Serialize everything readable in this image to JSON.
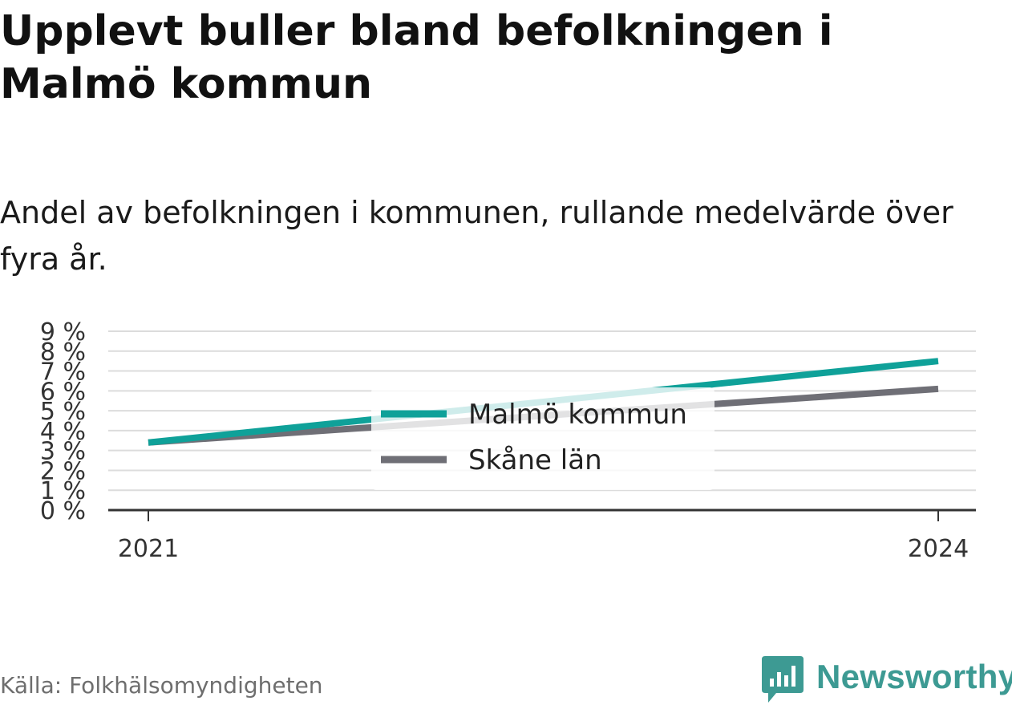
{
  "header": {
    "title": "Upplevt buller bland befolkningen i Malmö kommun",
    "subtitle": "Andel av befolkningen i kommunen, rullande medelvärde över fyra år."
  },
  "footer": {
    "source": "Källa: Folkhälsomyndigheten",
    "brand": "Newsworthy"
  },
  "colors": {
    "malmo": "#0fa199",
    "skane": "#6f6f76",
    "grid": "#dcdcdc",
    "axis": "#333333",
    "brand": "#3d9a93"
  },
  "chart_data": {
    "type": "line",
    "x": [
      2021,
      2024
    ],
    "x_ticks": [
      "2021",
      "2024"
    ],
    "y_ticks": [
      "0 %",
      "1 %",
      "2 %",
      "3 %",
      "4 %",
      "5 %",
      "6 %",
      "7 %",
      "8 %",
      "9 %"
    ],
    "ylim": [
      0,
      9
    ],
    "grid": true,
    "legend_position": "center",
    "series": [
      {
        "name": "Malmö kommun",
        "values": [
          3.4,
          7.5
        ],
        "color": "#0fa199"
      },
      {
        "name": "Skåne län",
        "values": [
          3.4,
          6.1
        ],
        "color": "#6f6f76"
      }
    ]
  }
}
